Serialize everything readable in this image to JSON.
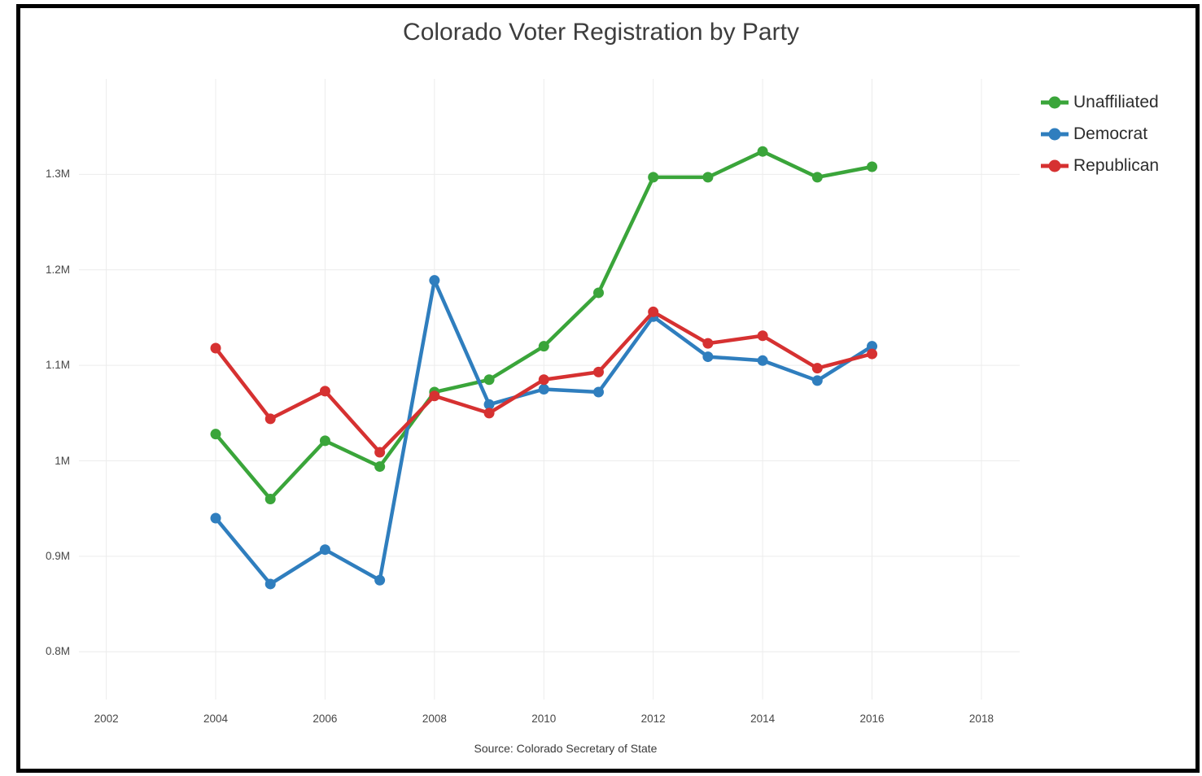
{
  "title": "Colorado Voter Registration by Party",
  "source": "Source: Colorado Secretary of State",
  "colors": {
    "unaffiliated": "#3aa53a",
    "democrat": "#2f7ebe",
    "republican": "#d63131",
    "gridline": "#ececec",
    "frame_border": "#000000",
    "title_text": "#3d3d3d",
    "tick_text": "#474747"
  },
  "legend": {
    "position": "top-right",
    "items": [
      {
        "label": "Unaffiliated",
        "color": "#3aa53a"
      },
      {
        "label": "Democrat",
        "color": "#2f7ebe"
      },
      {
        "label": "Republican",
        "color": "#d63131"
      }
    ]
  },
  "chart_data": {
    "type": "line",
    "title": "Colorado Voter Registration by Party",
    "xlabel": "",
    "ylabel": "",
    "y_unit": "millions of registered voters",
    "grid": true,
    "legend_position": "top-right",
    "xlim": [
      2001.5,
      2018.7
    ],
    "ylim": [
      0.75,
      1.4
    ],
    "x": [
      2004,
      2005,
      2006,
      2007,
      2008,
      2009,
      2010,
      2011,
      2012,
      2013,
      2014,
      2015,
      2016
    ],
    "series": [
      {
        "name": "Unaffiliated",
        "color": "#3aa53a",
        "values": [
          1.028,
          0.96,
          1.021,
          0.994,
          1.072,
          1.085,
          1.12,
          1.176,
          1.297,
          1.297,
          1.324,
          1.297,
          1.308
        ]
      },
      {
        "name": "Democrat",
        "color": "#2f7ebe",
        "values": [
          0.94,
          0.871,
          0.907,
          0.875,
          1.189,
          1.059,
          1.075,
          1.072,
          1.151,
          1.109,
          1.105,
          1.084,
          1.12
        ]
      },
      {
        "name": "Republican",
        "color": "#d63131",
        "values": [
          1.118,
          1.044,
          1.073,
          1.009,
          1.068,
          1.05,
          1.085,
          1.093,
          1.156,
          1.123,
          1.131,
          1.097,
          1.112
        ]
      }
    ],
    "x_ticks": [
      {
        "value": 2002,
        "label": "2002"
      },
      {
        "value": 2004,
        "label": "2004"
      },
      {
        "value": 2006,
        "label": "2006"
      },
      {
        "value": 2008,
        "label": "2008"
      },
      {
        "value": 2010,
        "label": "2010"
      },
      {
        "value": 2012,
        "label": "2012"
      },
      {
        "value": 2014,
        "label": "2014"
      },
      {
        "value": 2016,
        "label": "2016"
      },
      {
        "value": 2018,
        "label": "2018"
      }
    ],
    "y_ticks": [
      {
        "value": 1.3,
        "label": "1.3M"
      },
      {
        "value": 1.2,
        "label": "1.2M"
      },
      {
        "value": 1.1,
        "label": "1.1M"
      },
      {
        "value": 1.0,
        "label": "1M"
      },
      {
        "value": 0.9,
        "label": "0.9M"
      },
      {
        "value": 0.8,
        "label": "0.8M"
      }
    ]
  }
}
